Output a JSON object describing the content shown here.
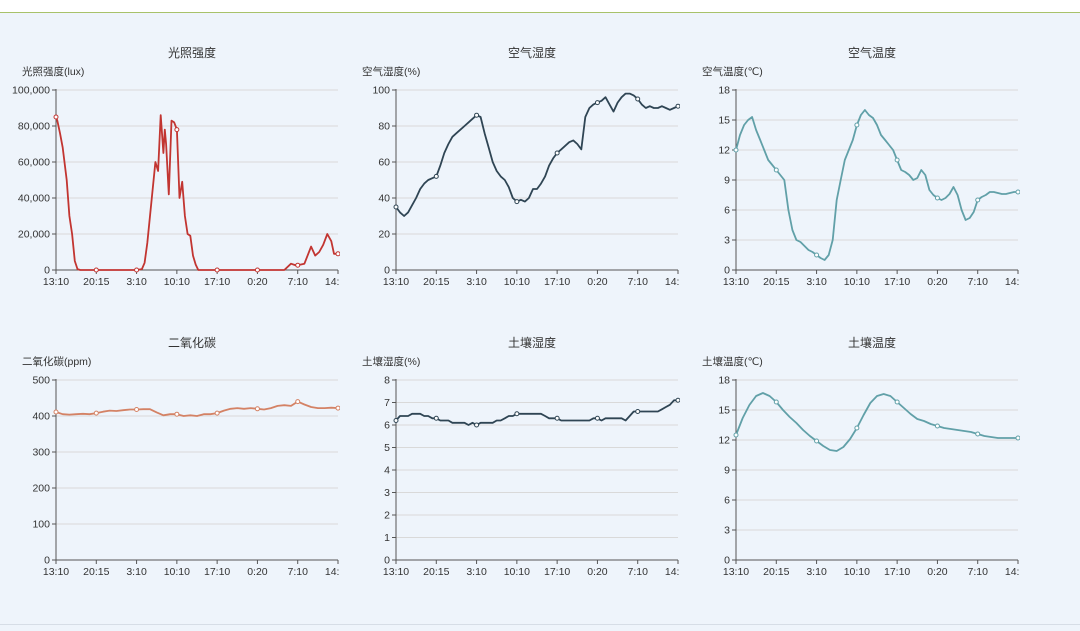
{
  "chart_data": [
    {
      "type": "line",
      "title": "光照强度",
      "ylabel": "光照强度(lux)",
      "ylim": [
        0,
        100000
      ],
      "yticks": [
        0,
        20000,
        40000,
        60000,
        80000,
        100000
      ],
      "ytick_labels": [
        "0",
        "20,000",
        "40,000",
        "60,000",
        "80,000",
        "100,000"
      ],
      "xticks": [
        "13:10",
        "20:15",
        "3:10",
        "10:10",
        "17:10",
        "0:20",
        "7:10",
        "14:10"
      ],
      "grid": true,
      "color": "#c23531",
      "series": [
        {
          "x": [
            0,
            0.1,
            0.3,
            0.5,
            0.8,
            1.0,
            1.2,
            1.4,
            1.6,
            1.8,
            2.0,
            3.0,
            4.0,
            5.0,
            6.0,
            6.4,
            6.6,
            6.8,
            7.0,
            7.2,
            7.4,
            7.6,
            7.8,
            8.0,
            8.1,
            8.2,
            8.4,
            8.6,
            8.8,
            9.0,
            9.2,
            9.4,
            9.6,
            9.8,
            10.0,
            10.2,
            10.4,
            10.6,
            10.8,
            11.0,
            11.2,
            11.5,
            12.0,
            13.0,
            14.0,
            15.0,
            16.0,
            17.0,
            17.5,
            17.7,
            17.9,
            18.2,
            18.5,
            19.0,
            19.3,
            19.6,
            19.9,
            20.2,
            20.5,
            20.7,
            21.0
          ],
          "y": [
            85000,
            83000,
            76000,
            68000,
            50000,
            30000,
            20000,
            5000,
            500,
            0,
            0,
            0,
            0,
            0,
            0,
            500,
            4000,
            15000,
            30000,
            45000,
            60000,
            55000,
            86000,
            65000,
            78000,
            70000,
            42000,
            83000,
            82000,
            78000,
            40000,
            49000,
            30000,
            20000,
            19000,
            8000,
            3000,
            0,
            0,
            0,
            0,
            0,
            0,
            0,
            0,
            0,
            0,
            0,
            3500,
            3000,
            2500,
            3000,
            3500,
            13000,
            8000,
            10000,
            14000,
            20000,
            16000,
            9000,
            9000
          ]
        }
      ],
      "points_x": [
        0,
        3,
        6,
        9,
        12,
        15,
        18,
        21
      ]
    },
    {
      "type": "line",
      "title": "空气湿度",
      "ylabel": "空气湿度(%)",
      "ylim": [
        0,
        100
      ],
      "yticks": [
        0,
        20,
        40,
        60,
        80,
        100
      ],
      "ytick_labels": [
        "0",
        "20",
        "40",
        "60",
        "80",
        "100"
      ],
      "xticks": [
        "13:10",
        "20:15",
        "3:10",
        "10:10",
        "17:10",
        "0:20",
        "7:10",
        "14:10"
      ],
      "grid": true,
      "color": "#2f4554",
      "series": [
        {
          "x": [
            0,
            0.3,
            0.6,
            0.9,
            1.2,
            1.5,
            1.8,
            2.1,
            2.4,
            2.7,
            3.0,
            3.3,
            3.6,
            3.9,
            4.2,
            4.5,
            4.8,
            5.1,
            5.4,
            5.7,
            6.0,
            6.3,
            6.6,
            6.9,
            7.2,
            7.5,
            7.8,
            8.1,
            8.4,
            8.7,
            9.0,
            9.3,
            9.6,
            9.9,
            10.2,
            10.5,
            10.8,
            11.1,
            11.4,
            11.7,
            12.0,
            12.3,
            12.6,
            12.9,
            13.2,
            13.5,
            13.8,
            14.1,
            14.4,
            14.7,
            15.0,
            15.3,
            15.6,
            15.9,
            16.2,
            16.5,
            16.8,
            17.1,
            17.4,
            17.7,
            18.0,
            18.3,
            18.6,
            18.9,
            19.2,
            19.5,
            19.8,
            20.1,
            20.4,
            20.7,
            21.0
          ],
          "y": [
            35,
            32,
            30,
            32,
            36,
            40,
            45,
            48,
            50,
            51,
            52,
            58,
            65,
            70,
            74,
            76,
            78,
            80,
            82,
            84,
            86,
            85,
            76,
            68,
            60,
            55,
            52,
            50,
            46,
            40,
            38,
            39,
            38,
            40,
            45,
            45,
            48,
            52,
            58,
            62,
            65,
            67,
            69,
            71,
            72,
            70,
            67,
            85,
            90,
            92,
            93,
            94,
            96,
            92,
            88,
            93,
            96,
            98,
            98,
            97,
            95,
            92,
            90,
            91,
            90,
            90,
            91,
            90,
            89,
            90,
            91
          ]
        }
      ],
      "points_x": [
        0,
        3,
        6,
        9,
        12,
        15,
        18,
        21
      ]
    },
    {
      "type": "line",
      "title": "空气温度",
      "ylabel": "空气温度(℃)",
      "ylim": [
        0,
        18
      ],
      "yticks": [
        0,
        3,
        6,
        9,
        12,
        15,
        18
      ],
      "ytick_labels": [
        "0",
        "3",
        "6",
        "9",
        "12",
        "15",
        "18"
      ],
      "xticks": [
        "13:10",
        "20:15",
        "3:10",
        "10:10",
        "17:10",
        "0:20",
        "7:10",
        "14:10"
      ],
      "grid": true,
      "color": "#61a0a8",
      "series": [
        {
          "x": [
            0,
            0.3,
            0.6,
            0.9,
            1.2,
            1.5,
            1.8,
            2.1,
            2.4,
            2.7,
            3.0,
            3.3,
            3.6,
            3.9,
            4.2,
            4.5,
            4.8,
            5.1,
            5.4,
            5.7,
            6.0,
            6.3,
            6.6,
            6.9,
            7.2,
            7.5,
            7.8,
            8.1,
            8.4,
            8.7,
            9.0,
            9.3,
            9.6,
            9.9,
            10.2,
            10.5,
            10.8,
            11.1,
            11.4,
            11.7,
            12.0,
            12.3,
            12.6,
            12.9,
            13.2,
            13.5,
            13.8,
            14.1,
            14.4,
            14.7,
            15.0,
            15.3,
            15.6,
            15.9,
            16.2,
            16.5,
            16.8,
            17.1,
            17.4,
            17.7,
            18.0,
            18.3,
            18.6,
            18.9,
            19.2,
            19.5,
            19.8,
            20.1,
            20.4,
            20.7,
            21.0
          ],
          "y": [
            12,
            13.5,
            14.5,
            15,
            15.3,
            14,
            13,
            12,
            11,
            10.5,
            10,
            9.5,
            9,
            6,
            4,
            3,
            2.8,
            2.4,
            2,
            1.8,
            1.5,
            1.2,
            1.0,
            1.5,
            3,
            7,
            9,
            11,
            12,
            13,
            14.5,
            15.5,
            16,
            15.5,
            15.2,
            14.5,
            13.5,
            13,
            12.5,
            12,
            11,
            10,
            9.8,
            9.5,
            9.0,
            9.2,
            10,
            9.5,
            8,
            7.5,
            7.2,
            7,
            7.2,
            7.6,
            8.3,
            7.5,
            6,
            5,
            5.2,
            5.8,
            7,
            7.3,
            7.5,
            7.8,
            7.8,
            7.7,
            7.6,
            7.6,
            7.7,
            7.8,
            7.8
          ]
        }
      ],
      "points_x": [
        0,
        3,
        6,
        9,
        12,
        15,
        18,
        21
      ]
    },
    {
      "type": "line",
      "title": "二氧化碳",
      "ylabel": "二氧化碳(ppm)",
      "ylim": [
        0,
        500
      ],
      "yticks": [
        0,
        100,
        200,
        300,
        400,
        500
      ],
      "ytick_labels": [
        "0",
        "100",
        "200",
        "300",
        "400",
        "500"
      ],
      "xticks": [
        "13:10",
        "20:15",
        "3:10",
        "10:10",
        "17:10",
        "0:20",
        "7:10",
        "14:10"
      ],
      "grid": true,
      "color": "#d48265",
      "series": [
        {
          "x": [
            0,
            0.5,
            1,
            1.5,
            2,
            2.5,
            3,
            3.5,
            4,
            4.5,
            5,
            5.5,
            6,
            6.5,
            7,
            7.5,
            8,
            8.5,
            9,
            9.5,
            10,
            10.5,
            11,
            11.5,
            12,
            12.5,
            13,
            13.5,
            14,
            14.5,
            15,
            15.5,
            16,
            16.5,
            17,
            17.5,
            18,
            18.5,
            19,
            19.5,
            20,
            20.5,
            21
          ],
          "y": [
            411,
            405,
            404,
            405,
            406,
            405,
            408,
            412,
            415,
            414,
            416,
            418,
            418,
            419,
            419,
            410,
            402,
            405,
            405,
            400,
            402,
            400,
            405,
            405,
            408,
            415,
            420,
            422,
            420,
            422,
            420,
            418,
            422,
            428,
            430,
            428,
            440,
            432,
            425,
            422,
            422,
            423,
            422
          ]
        }
      ],
      "points_x": [
        0,
        3,
        6,
        9,
        12,
        15,
        18,
        21
      ]
    },
    {
      "type": "line",
      "title": "土壤湿度",
      "ylabel": "土壤湿度(%)",
      "ylim": [
        0,
        8
      ],
      "yticks": [
        0,
        1,
        2,
        3,
        4,
        5,
        6,
        7,
        8
      ],
      "ytick_labels": [
        "0",
        "1",
        "2",
        "3",
        "4",
        "5",
        "6",
        "7",
        "8"
      ],
      "xticks": [
        "13:10",
        "20:15",
        "3:10",
        "10:10",
        "17:10",
        "0:20",
        "7:10",
        "14:10"
      ],
      "grid": true,
      "color": "#2f4554",
      "series": [
        {
          "x": [
            0,
            0.3,
            0.6,
            0.9,
            1.2,
            1.5,
            1.8,
            2.1,
            2.4,
            2.7,
            3.0,
            3.3,
            3.6,
            3.9,
            4.2,
            4.5,
            4.8,
            5.1,
            5.4,
            5.7,
            6.0,
            6.3,
            6.6,
            6.9,
            7.2,
            7.5,
            7.8,
            8.1,
            8.4,
            8.7,
            9.0,
            9.3,
            9.6,
            9.9,
            10.2,
            10.5,
            10.8,
            11.1,
            11.4,
            11.7,
            12.0,
            12.3,
            12.6,
            12.9,
            13.2,
            13.5,
            13.8,
            14.1,
            14.4,
            14.7,
            15.0,
            15.3,
            15.6,
            15.9,
            16.2,
            16.5,
            16.8,
            17.1,
            17.4,
            17.7,
            18.0,
            18.3,
            18.6,
            18.9,
            19.2,
            19.5,
            19.8,
            20.1,
            20.4,
            20.7,
            21.0
          ],
          "y": [
            6.2,
            6.4,
            6.4,
            6.4,
            6.5,
            6.5,
            6.5,
            6.4,
            6.4,
            6.3,
            6.3,
            6.2,
            6.2,
            6.2,
            6.1,
            6.1,
            6.1,
            6.1,
            6.0,
            6.1,
            6.0,
            6.1,
            6.1,
            6.1,
            6.1,
            6.2,
            6.2,
            6.3,
            6.4,
            6.4,
            6.5,
            6.5,
            6.5,
            6.5,
            6.5,
            6.5,
            6.5,
            6.4,
            6.3,
            6.3,
            6.3,
            6.2,
            6.2,
            6.2,
            6.2,
            6.2,
            6.2,
            6.2,
            6.2,
            6.3,
            6.3,
            6.2,
            6.3,
            6.3,
            6.3,
            6.3,
            6.3,
            6.2,
            6.4,
            6.6,
            6.6,
            6.6,
            6.6,
            6.6,
            6.6,
            6.6,
            6.7,
            6.8,
            6.9,
            7.1,
            7.1
          ]
        }
      ],
      "points_x": [
        0,
        3,
        6,
        9,
        12,
        15,
        18,
        21
      ]
    },
    {
      "type": "line",
      "title": "土壤温度",
      "ylabel": "土壤温度(℃)",
      "ylim": [
        0,
        18
      ],
      "yticks": [
        0,
        3,
        6,
        9,
        12,
        15,
        18
      ],
      "ytick_labels": [
        "0",
        "3",
        "6",
        "9",
        "12",
        "15",
        "18"
      ],
      "xticks": [
        "13:10",
        "20:15",
        "3:10",
        "10:10",
        "17:10",
        "0:20",
        "7:10",
        "14:10"
      ],
      "grid": true,
      "color": "#61a0a8",
      "series": [
        {
          "x": [
            0,
            0.5,
            1,
            1.5,
            2,
            2.5,
            3,
            3.5,
            4,
            4.5,
            5,
            5.5,
            6,
            6.5,
            7,
            7.5,
            8,
            8.5,
            9,
            9.5,
            10,
            10.5,
            11,
            11.5,
            12,
            12.5,
            13,
            13.5,
            14,
            14.5,
            15,
            15.5,
            16,
            16.5,
            17,
            17.5,
            18,
            18.5,
            19,
            19.5,
            20,
            20.5,
            21
          ],
          "y": [
            12.5,
            14.2,
            15.5,
            16.4,
            16.7,
            16.4,
            15.8,
            15.0,
            14.3,
            13.7,
            13.0,
            12.4,
            11.9,
            11.4,
            11.0,
            10.9,
            11.3,
            12.1,
            13.2,
            14.5,
            15.7,
            16.4,
            16.6,
            16.4,
            15.8,
            15.2,
            14.6,
            14.1,
            13.9,
            13.6,
            13.4,
            13.2,
            13.1,
            13.0,
            12.9,
            12.8,
            12.6,
            12.4,
            12.3,
            12.2,
            12.2,
            12.2,
            12.2
          ]
        }
      ],
      "points_x": [
        0,
        3,
        6,
        9,
        12,
        15,
        18,
        21
      ]
    }
  ]
}
